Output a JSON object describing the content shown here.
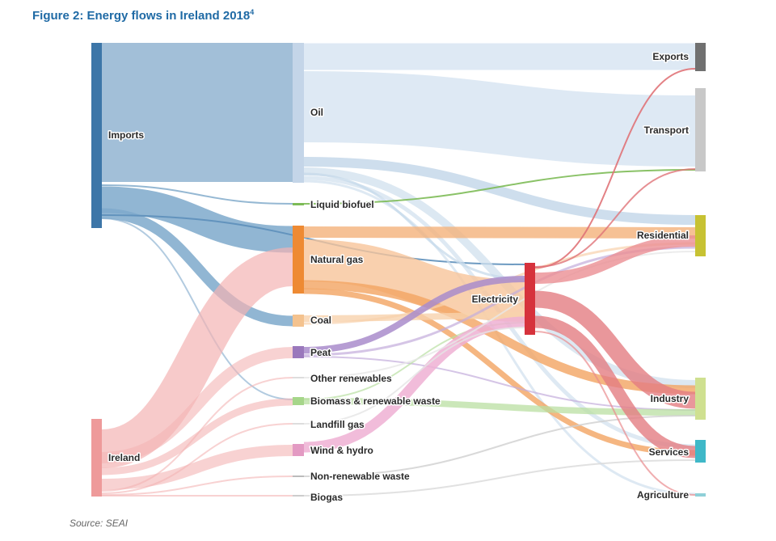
{
  "figure": {
    "title": "Figure 2:  Energy flows in Ireland 2018",
    "title_sup": "4",
    "source": "Source: SEAI"
  },
  "nodes": [
    {
      "id": "imports",
      "label": "Imports",
      "column": 0,
      "color": "#3d76a8"
    },
    {
      "id": "ireland",
      "label": "Ireland",
      "column": 0,
      "color": "#ee9a9a"
    },
    {
      "id": "oil",
      "label": "Oil",
      "column": 1,
      "color": "#c4d5e8"
    },
    {
      "id": "liquid_biofuel",
      "label": "Liquid biofuel",
      "column": 1,
      "color": "#7dbb56"
    },
    {
      "id": "natural_gas",
      "label": "Natural gas",
      "column": 1,
      "color": "#ee8a33"
    },
    {
      "id": "coal",
      "label": "Coal",
      "column": 1,
      "color": "#f4c28e"
    },
    {
      "id": "peat",
      "label": "Peat",
      "column": 1,
      "color": "#9a78bc"
    },
    {
      "id": "other_renewables",
      "label": "Other renewables",
      "column": 1,
      "color": "#dddddd"
    },
    {
      "id": "biomass",
      "label": "Biomass & renewable waste",
      "column": 1,
      "color": "#a6d68a"
    },
    {
      "id": "landfill_gas",
      "label": "Landfill gas",
      "column": 1,
      "color": "#dddddd"
    },
    {
      "id": "wind_hydro",
      "label": "Wind & hydro",
      "column": 1,
      "color": "#e39ac3"
    },
    {
      "id": "non_renewable_waste",
      "label": "Non-renewable waste",
      "column": 1,
      "color": "#bbbbbb"
    },
    {
      "id": "biogas",
      "label": "Biogas",
      "column": 1,
      "color": "#cccccc"
    },
    {
      "id": "electricity",
      "label": "Electricity",
      "column": 2,
      "color": "#d6323c"
    },
    {
      "id": "exports",
      "label": "Exports",
      "column": 3,
      "color": "#707070"
    },
    {
      "id": "transport",
      "label": "Transport",
      "column": 3,
      "color": "#c8c8c8"
    },
    {
      "id": "residential",
      "label": "Residential",
      "column": 3,
      "color": "#c7c233"
    },
    {
      "id": "industry",
      "label": "Industry",
      "column": 3,
      "color": "#cfe090"
    },
    {
      "id": "services",
      "label": "Services",
      "column": 3,
      "color": "#3fb8c8"
    },
    {
      "id": "agriculture",
      "label": "Agriculture",
      "column": 3,
      "color": "#8fd0d8"
    }
  ]
}
